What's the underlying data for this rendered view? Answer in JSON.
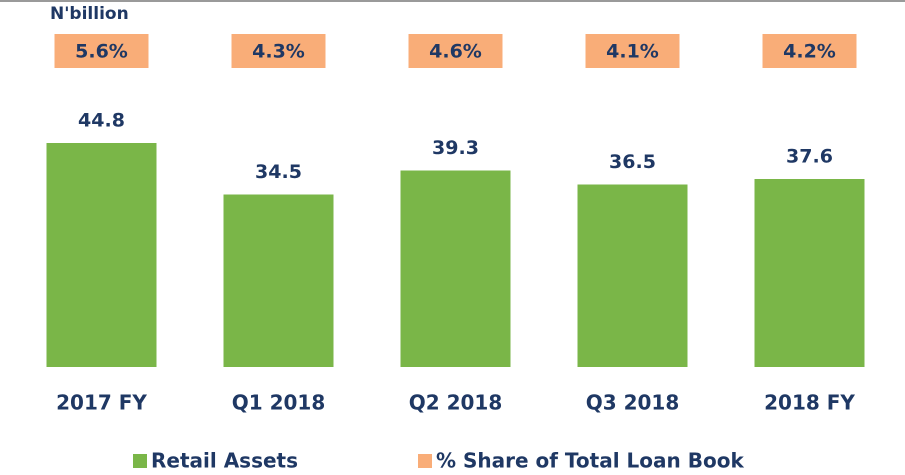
{
  "chart_data": {
    "type": "bar",
    "y_label": "N'billion",
    "categories": [
      "2017 FY",
      "Q1 2018",
      "Q2 2018",
      "Q3 2018",
      "2018 FY"
    ],
    "series": [
      {
        "name": "Retail Assets",
        "color": "#7ab648",
        "values": [
          44.8,
          34.5,
          39.3,
          36.5,
          37.6
        ]
      },
      {
        "name": "% Share of Total Loan Book",
        "color": "#f9ad78",
        "values": [
          5.6,
          4.3,
          4.6,
          4.1,
          4.2
        ],
        "value_labels": [
          "5.6%",
          "4.3%",
          "4.6%",
          "4.1%",
          "4.2%"
        ]
      }
    ]
  }
}
